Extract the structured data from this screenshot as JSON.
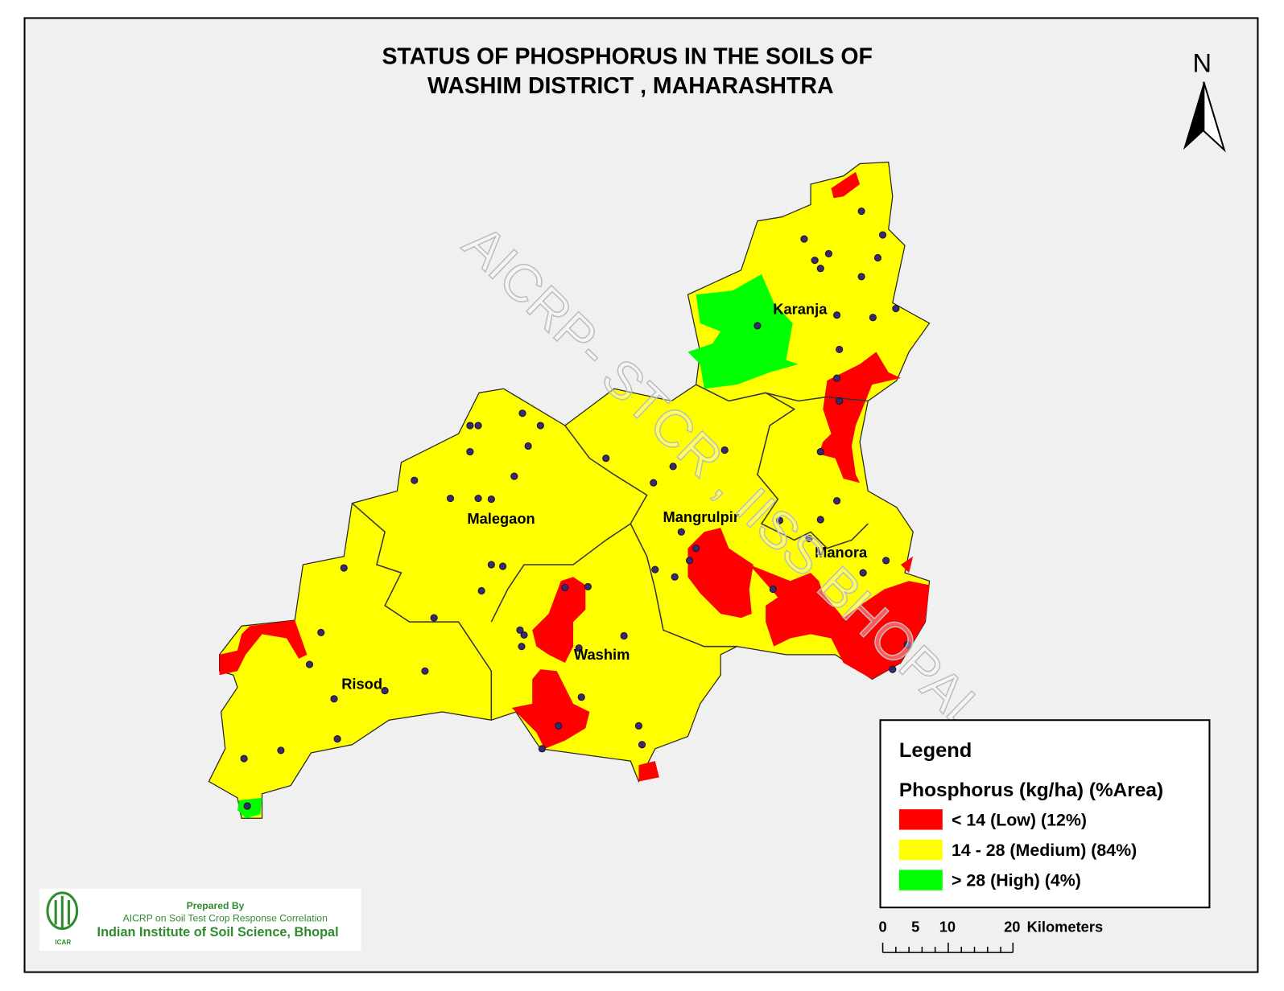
{
  "header": {
    "title": [
      "STATUS OF PHOSPHORUS  IN THE SOILS OF",
      "WASHIM  DISTRICT , MAHARASHTRA"
    ]
  },
  "north_arrow": {
    "label": "N"
  },
  "map": {
    "districts": [
      "Karanja",
      "Malegaon",
      "Mangrulpir",
      "Manora",
      "Washim",
      "Risod"
    ],
    "watermark": "AICRP- STCR , IISS BHOPAL"
  },
  "legend": {
    "title": "Legend",
    "subtitle": "Phosphorus (kg/ha) (%Area)",
    "items": [
      {
        "label": "<  14 (Low) (12%)",
        "color": "#ff0000"
      },
      {
        "label": "14 - 28 (Medium) (84%)",
        "color": "#ffff00"
      },
      {
        "label": "> 28 (High) (4%)",
        "color": "#00ff00"
      }
    ]
  },
  "scale_bar": {
    "ticks": [
      0,
      5,
      10,
      20
    ],
    "unit": "Kilometers"
  },
  "credits": {
    "lines": [
      "Prepared By",
      "AICRP on Soil Test Crop Response Correlation",
      "Indian Institute of Soil Science, Bhopal"
    ],
    "logo": "ICAR"
  }
}
